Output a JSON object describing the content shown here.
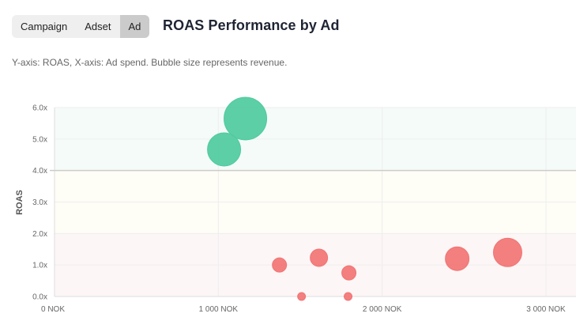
{
  "toggle": {
    "items": [
      {
        "label": "Campaign",
        "active": false
      },
      {
        "label": "Adset",
        "active": false
      },
      {
        "label": "Ad",
        "active": true
      }
    ]
  },
  "header": {
    "title": "ROAS Performance by Ad",
    "subtitle": "Y-axis: ROAS, X-axis: Ad spend. Bubble size represents revenue."
  },
  "colors": {
    "good": "#4ecb9e",
    "bad": "#f27474",
    "band_good": "#f5fbf9",
    "band_mid": "#fefdf6",
    "band_low": "#fdf6f6",
    "threshold_line": "#cccccc"
  },
  "chart_data": {
    "type": "scatter",
    "subtype": "bubble",
    "title": "ROAS Performance by Ad",
    "xlabel": "",
    "ylabel": "ROAS",
    "xlim": [
      0,
      3100
    ],
    "ylim": [
      0,
      6
    ],
    "x_ticks": [
      "0 NOK",
      "1 000 NOK",
      "2 000 NOK",
      "3 000 NOK"
    ],
    "x_tick_values": [
      0,
      1000,
      2000,
      3000
    ],
    "y_ticks": [
      "0.0x",
      "1.0x",
      "2.0x",
      "3.0x",
      "4.0x",
      "5.0x",
      "6.0x"
    ],
    "y_tick_values": [
      0,
      1,
      2,
      3,
      4,
      5,
      6
    ],
    "threshold": 4.0,
    "grid": true,
    "legend": null,
    "points": [
      {
        "x": 1165,
        "y": 5.65,
        "r": 27,
        "group": "good"
      },
      {
        "x": 1035,
        "y": 4.67,
        "r": 21,
        "group": "good"
      },
      {
        "x": 1373,
        "y": 1.0,
        "r": 9,
        "group": "bad"
      },
      {
        "x": 1614,
        "y": 1.23,
        "r": 11,
        "group": "bad"
      },
      {
        "x": 1797,
        "y": 0.75,
        "r": 9,
        "group": "bad"
      },
      {
        "x": 1508,
        "y": 0.0,
        "r": 5,
        "group": "bad"
      },
      {
        "x": 1792,
        "y": 0.0,
        "r": 5,
        "group": "bad"
      },
      {
        "x": 2458,
        "y": 1.2,
        "r": 15,
        "group": "bad"
      },
      {
        "x": 2766,
        "y": 1.4,
        "r": 18,
        "group": "bad"
      }
    ]
  }
}
